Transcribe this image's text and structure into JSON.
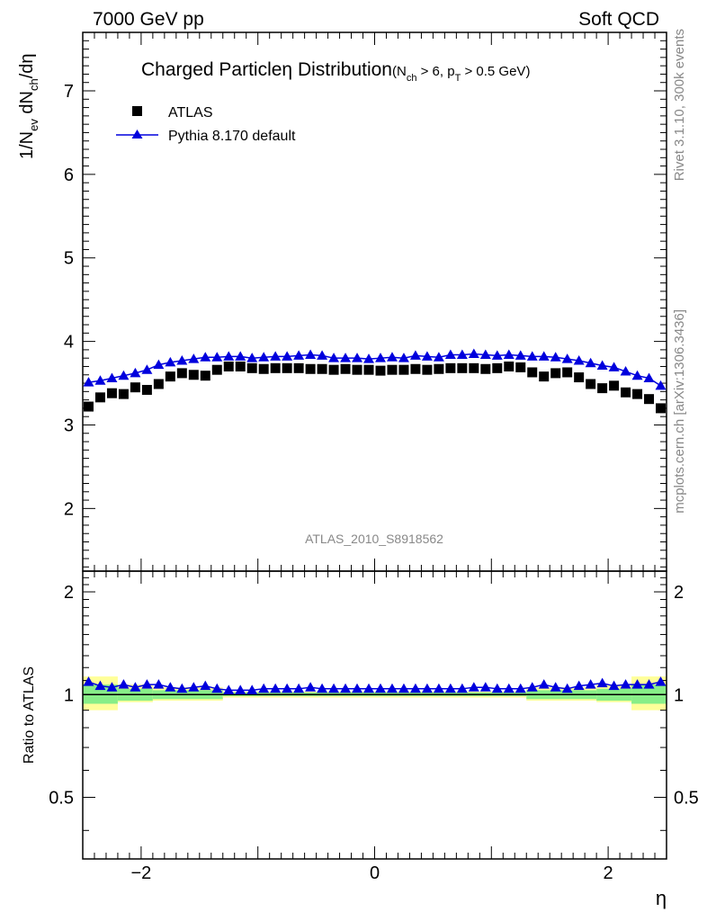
{
  "header": {
    "left": "7000 GeV pp",
    "right": "Soft QCD"
  },
  "side": {
    "rivet": "Rivet 3.1.10,  300k events",
    "mcplots": "mcplots.cern.ch [arXiv:1306.3436]"
  },
  "chart_data": {
    "type": "scatter",
    "title_main": "Charged Particle",
    "title_eta": "η",
    "title_rest": " Distribution",
    "title_cond_1": "(N",
    "title_cond_2": "ch",
    "title_cond_3": " > 6, p",
    "title_cond_4": "T",
    "title_cond_5": " > 0.5 GeV)",
    "ylabel_parts": [
      "1/N",
      "ev",
      " dN",
      "ch",
      "/dη"
    ],
    "xlabel": "η",
    "ratio_ylabel": "Ratio to ATLAS",
    "analysis_tag": "ATLAS_2010_S8918562",
    "xlim": [
      -2.5,
      2.5
    ],
    "ylim": [
      1.25,
      7.7
    ],
    "ratio_ylim": [
      0.33,
      2.3
    ],
    "x_ticks": [
      -2,
      0,
      2
    ],
    "x_tick_labels": [
      "−2",
      "0",
      "2"
    ],
    "y_ticks": [
      2,
      3,
      4,
      5,
      6,
      7
    ],
    "y_tick_labels": [
      "2",
      "3",
      "4",
      "5",
      "6",
      "7"
    ],
    "ratio_ticks": [
      0.5,
      1,
      2
    ],
    "ratio_tick_labels": [
      "0.5",
      "1",
      "2"
    ],
    "legend": [
      "ATLAS",
      "Pythia 8.170 default"
    ],
    "x": [
      -2.45,
      -2.35,
      -2.25,
      -2.15,
      -2.05,
      -1.95,
      -1.85,
      -1.75,
      -1.65,
      -1.55,
      -1.45,
      -1.35,
      -1.25,
      -1.15,
      -1.05,
      -0.95,
      -0.85,
      -0.75,
      -0.65,
      -0.55,
      -0.45,
      -0.35,
      -0.25,
      -0.15,
      -0.05,
      0.05,
      0.15,
      0.25,
      0.35,
      0.45,
      0.55,
      0.65,
      0.75,
      0.85,
      0.95,
      1.05,
      1.15,
      1.25,
      1.35,
      1.45,
      1.55,
      1.65,
      1.75,
      1.85,
      1.95,
      2.05,
      2.15,
      2.25,
      2.35,
      2.45
    ],
    "series": [
      {
        "name": "ATLAS",
        "color": "#000000",
        "marker": "square",
        "values": [
          3.22,
          3.33,
          3.38,
          3.37,
          3.45,
          3.42,
          3.49,
          3.58,
          3.62,
          3.6,
          3.59,
          3.66,
          3.7,
          3.7,
          3.68,
          3.67,
          3.68,
          3.68,
          3.68,
          3.67,
          3.67,
          3.66,
          3.67,
          3.66,
          3.66,
          3.65,
          3.66,
          3.66,
          3.67,
          3.66,
          3.67,
          3.68,
          3.68,
          3.68,
          3.67,
          3.68,
          3.7,
          3.69,
          3.63,
          3.58,
          3.62,
          3.63,
          3.57,
          3.49,
          3.44,
          3.47,
          3.39,
          3.37,
          3.31,
          3.2
        ]
      },
      {
        "name": "Pythia 8.170 default",
        "color": "#0000dd",
        "marker": "triangle",
        "values": [
          3.51,
          3.53,
          3.56,
          3.59,
          3.62,
          3.66,
          3.72,
          3.75,
          3.77,
          3.79,
          3.81,
          3.81,
          3.82,
          3.82,
          3.8,
          3.81,
          3.82,
          3.82,
          3.83,
          3.84,
          3.83,
          3.8,
          3.8,
          3.8,
          3.79,
          3.8,
          3.81,
          3.8,
          3.83,
          3.82,
          3.81,
          3.84,
          3.84,
          3.85,
          3.84,
          3.83,
          3.84,
          3.83,
          3.82,
          3.82,
          3.81,
          3.79,
          3.77,
          3.74,
          3.71,
          3.69,
          3.64,
          3.59,
          3.56,
          3.47
        ]
      }
    ],
    "ratio_values": [
      1.09,
      1.06,
      1.05,
      1.07,
      1.05,
      1.07,
      1.07,
      1.05,
      1.04,
      1.05,
      1.06,
      1.04,
      1.03,
      1.03,
      1.03,
      1.04,
      1.04,
      1.04,
      1.04,
      1.05,
      1.04,
      1.04,
      1.04,
      1.04,
      1.04,
      1.04,
      1.04,
      1.04,
      1.04,
      1.04,
      1.04,
      1.04,
      1.04,
      1.05,
      1.05,
      1.04,
      1.04,
      1.04,
      1.05,
      1.07,
      1.05,
      1.04,
      1.06,
      1.07,
      1.08,
      1.06,
      1.07,
      1.07,
      1.07,
      1.09
    ],
    "uncertainty_bands": [
      {
        "x0": -2.5,
        "x1": -2.2,
        "yellow": [
          0.9,
          1.13
        ],
        "green": [
          0.94,
          1.07
        ]
      },
      {
        "x0": -2.2,
        "x1": -1.9,
        "yellow": [
          0.95,
          1.07
        ],
        "green": [
          0.96,
          1.04
        ]
      },
      {
        "x0": -1.9,
        "x1": -1.3,
        "yellow": [
          0.96,
          1.05
        ],
        "green": [
          0.97,
          1.03
        ]
      },
      {
        "x0": -1.3,
        "x1": 1.3,
        "yellow": [
          0.98,
          1.02
        ],
        "green": [
          0.99,
          1.015
        ]
      },
      {
        "x0": 1.3,
        "x1": 1.9,
        "yellow": [
          0.96,
          1.05
        ],
        "green": [
          0.97,
          1.03
        ]
      },
      {
        "x0": 1.9,
        "x1": 2.2,
        "yellow": [
          0.95,
          1.07
        ],
        "green": [
          0.96,
          1.04
        ]
      },
      {
        "x0": 2.2,
        "x1": 2.5,
        "yellow": [
          0.9,
          1.13
        ],
        "green": [
          0.94,
          1.07
        ]
      }
    ],
    "band_colors": {
      "yellow": "#ffff99",
      "green": "#88ee88"
    }
  }
}
